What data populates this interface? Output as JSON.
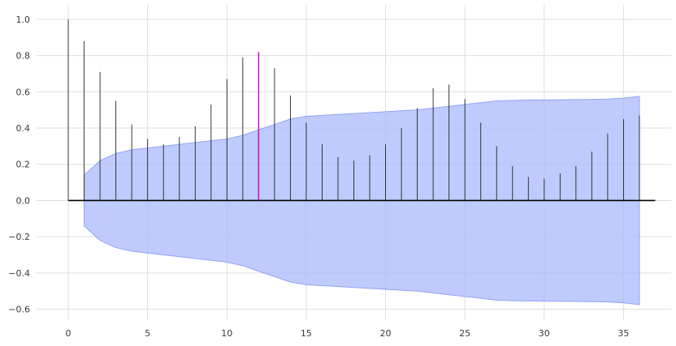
{
  "chart_data": {
    "type": "bar",
    "title": "",
    "xlabel": "",
    "ylabel": "",
    "xlim": [
      -2,
      38
    ],
    "ylim": [
      -0.66,
      1.08
    ],
    "grid": true,
    "x_ticks": [
      0,
      5,
      10,
      15,
      20,
      25,
      30,
      35
    ],
    "y_ticks": [
      1.0,
      0.8,
      0.6,
      0.4,
      0.2,
      0.0,
      -0.2,
      -0.4,
      -0.6
    ],
    "x_tick_labels": [
      "0",
      "5",
      "10",
      "15",
      "20",
      "25",
      "30",
      "35"
    ],
    "y_tick_labels": [
      "1.0",
      "0.8",
      "0.6",
      "0.4",
      "0.2",
      "0.0",
      "−0.2",
      "−0.4",
      "−0.6"
    ],
    "zero_line_range": [
      0,
      37
    ],
    "lags": [
      0,
      1,
      2,
      3,
      4,
      5,
      6,
      7,
      8,
      9,
      10,
      11,
      12,
      13,
      14,
      15,
      16,
      17,
      18,
      19,
      20,
      21,
      22,
      23,
      24,
      25,
      26,
      27,
      28,
      29,
      30,
      31,
      32,
      33,
      34,
      35,
      36
    ],
    "values": [
      1.0,
      0.88,
      0.71,
      0.55,
      0.42,
      0.34,
      0.31,
      0.35,
      0.41,
      0.53,
      0.67,
      0.79,
      0.82,
      0.73,
      0.58,
      0.43,
      0.31,
      0.24,
      0.22,
      0.25,
      0.31,
      0.4,
      0.51,
      0.62,
      0.64,
      0.56,
      0.43,
      0.3,
      0.19,
      0.13,
      0.12,
      0.15,
      0.19,
      0.27,
      0.37,
      0.45,
      0.47
    ],
    "highlight_lag": 12,
    "confidence_band": {
      "lags": [
        1,
        2,
        3,
        4,
        5,
        6,
        7,
        8,
        9,
        10,
        11,
        12,
        13,
        14,
        15,
        16,
        17,
        18,
        19,
        20,
        21,
        22,
        23,
        24,
        25,
        26,
        27,
        28,
        29,
        30,
        31,
        32,
        33,
        34,
        35,
        36
      ],
      "upper": [
        0.14,
        0.22,
        0.26,
        0.28,
        0.29,
        0.3,
        0.31,
        0.32,
        0.33,
        0.34,
        0.36,
        0.39,
        0.42,
        0.45,
        0.465,
        0.47,
        0.475,
        0.48,
        0.485,
        0.49,
        0.495,
        0.5,
        0.51,
        0.52,
        0.53,
        0.54,
        0.55,
        0.553,
        0.555,
        0.555,
        0.556,
        0.557,
        0.558,
        0.56,
        0.565,
        0.575
      ]
    },
    "colors": {
      "bar": "#222222",
      "highlight_bar": "#cc00cc",
      "band_fill": "#aab9fb",
      "band_edge": "#8fa2f6",
      "zero_line": "#000000",
      "grid": "#dddddd"
    }
  }
}
